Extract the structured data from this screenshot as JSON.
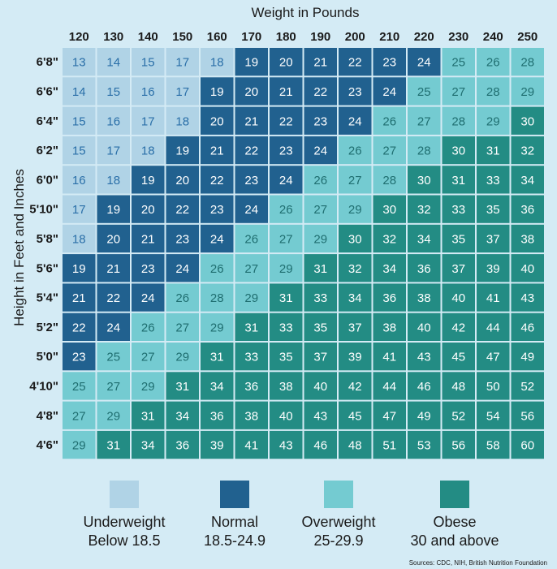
{
  "chart_data": {
    "type": "heatmap",
    "title": "",
    "xlabel": "Weight in Pounds",
    "ylabel": "Height in Feet and Inches",
    "x": [
      "120",
      "130",
      "140",
      "150",
      "160",
      "170",
      "180",
      "190",
      "200",
      "210",
      "220",
      "230",
      "240",
      "250"
    ],
    "y": [
      "6'8\"",
      "6'6\"",
      "6'4\"",
      "6'2\"",
      "6'0\"",
      "5'10\"",
      "5'8\"",
      "5'6\"",
      "5'4\"",
      "5'2\"",
      "5'0\"",
      "4'10\"",
      "4'8\"",
      "4'6\""
    ],
    "values": [
      [
        13,
        14,
        15,
        17,
        18,
        19,
        20,
        21,
        22,
        23,
        24,
        25,
        26,
        28
      ],
      [
        14,
        15,
        16,
        17,
        19,
        20,
        21,
        22,
        23,
        24,
        25,
        27,
        28,
        29
      ],
      [
        15,
        16,
        17,
        18,
        20,
        21,
        22,
        23,
        24,
        26,
        27,
        28,
        29,
        30
      ],
      [
        15,
        17,
        18,
        19,
        21,
        22,
        23,
        24,
        26,
        27,
        28,
        30,
        31,
        32
      ],
      [
        16,
        18,
        19,
        20,
        22,
        23,
        24,
        26,
        27,
        28,
        30,
        31,
        33,
        34
      ],
      [
        17,
        19,
        20,
        22,
        23,
        24,
        26,
        27,
        29,
        30,
        32,
        33,
        35,
        36
      ],
      [
        18,
        20,
        21,
        23,
        24,
        26,
        27,
        29,
        30,
        32,
        34,
        35,
        37,
        38
      ],
      [
        19,
        21,
        23,
        24,
        26,
        27,
        29,
        31,
        32,
        34,
        36,
        37,
        39,
        40
      ],
      [
        21,
        22,
        24,
        26,
        28,
        29,
        31,
        33,
        34,
        36,
        38,
        40,
        41,
        43
      ],
      [
        22,
        24,
        26,
        27,
        29,
        31,
        33,
        35,
        37,
        38,
        40,
        42,
        44,
        46
      ],
      [
        23,
        25,
        27,
        29,
        31,
        33,
        35,
        37,
        39,
        41,
        43,
        45,
        47,
        49
      ],
      [
        25,
        27,
        29,
        31,
        34,
        36,
        38,
        40,
        42,
        44,
        46,
        48,
        50,
        52
      ],
      [
        27,
        29,
        31,
        34,
        36,
        38,
        40,
        43,
        45,
        47,
        49,
        52,
        54,
        56
      ],
      [
        29,
        31,
        34,
        36,
        39,
        41,
        43,
        46,
        48,
        51,
        53,
        56,
        58,
        60
      ]
    ],
    "categories": [
      {
        "name": "Underweight",
        "range": "Below 18.5",
        "color": "#b0d3e6",
        "text_color": "#2a6fa8"
      },
      {
        "name": "Normal",
        "range": "18.5-24.9",
        "color": "#21618f",
        "text_color": "#ffffff"
      },
      {
        "name": "Overweight",
        "range": "25-29.9",
        "color": "#74cbd1",
        "text_color": "#1f6e70"
      },
      {
        "name": "Obese",
        "range": "30 and above",
        "color": "#238c84",
        "text_color": "#ffffff"
      }
    ],
    "source": "Sources: CDC, NIH, British Nutrition Foundation"
  }
}
